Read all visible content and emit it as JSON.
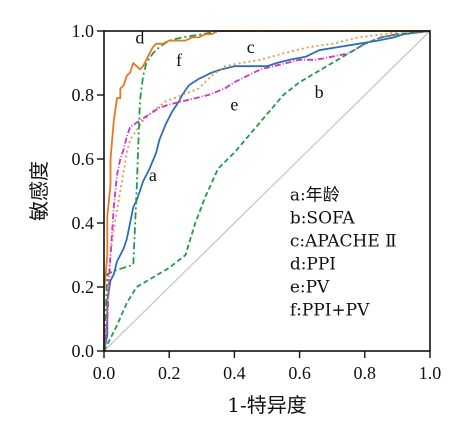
{
  "chart_data": {
    "type": "line",
    "xlabel": "1-特异度",
    "ylabel": "敏感度",
    "xlim": [
      0,
      1
    ],
    "ylim": [
      0,
      1
    ],
    "x_ticks": [
      "0.0",
      "0.2",
      "0.4",
      "0.6",
      "0.8",
      "1.0"
    ],
    "y_ticks": [
      "0.0",
      "0.2",
      "0.4",
      "0.6",
      "0.8",
      "1.0"
    ],
    "grid": false,
    "legend_placement": "lower-right",
    "legend": [
      "a:年龄",
      "b:SOFA",
      "c:APACHE Ⅱ",
      "d:PPI",
      "e:PV",
      "f:PPI+PV"
    ],
    "reference_line": {
      "color": "#c8c8c8",
      "points": [
        [
          0,
          0
        ],
        [
          1,
          1
        ]
      ]
    },
    "series": [
      {
        "name": "a",
        "color": "#2f6db5",
        "dash": "",
        "label_at": [
          0.15,
          0.55
        ],
        "points": [
          [
            0.0,
            0.0
          ],
          [
            0.01,
            0.05
          ],
          [
            0.01,
            0.16
          ],
          [
            0.02,
            0.22
          ],
          [
            0.03,
            0.24
          ],
          [
            0.04,
            0.28
          ],
          [
            0.06,
            0.32
          ],
          [
            0.07,
            0.35
          ],
          [
            0.08,
            0.4
          ],
          [
            0.09,
            0.45
          ],
          [
            0.1,
            0.47
          ],
          [
            0.11,
            0.5
          ],
          [
            0.12,
            0.53
          ],
          [
            0.14,
            0.57
          ],
          [
            0.16,
            0.62
          ],
          [
            0.17,
            0.66
          ],
          [
            0.19,
            0.71
          ],
          [
            0.21,
            0.75
          ],
          [
            0.23,
            0.78
          ],
          [
            0.24,
            0.8
          ],
          [
            0.26,
            0.83
          ],
          [
            0.29,
            0.85
          ],
          [
            0.31,
            0.86
          ],
          [
            0.33,
            0.87
          ],
          [
            0.36,
            0.88
          ],
          [
            0.4,
            0.89
          ],
          [
            0.45,
            0.89
          ],
          [
            0.5,
            0.89
          ],
          [
            0.53,
            0.9
          ],
          [
            0.57,
            0.91
          ],
          [
            0.62,
            0.92
          ],
          [
            0.66,
            0.94
          ],
          [
            0.72,
            0.95
          ],
          [
            0.78,
            0.96
          ],
          [
            0.84,
            0.97
          ],
          [
            0.89,
            0.98
          ],
          [
            0.92,
            0.99
          ],
          [
            1.0,
            1.0
          ]
        ]
      },
      {
        "name": "b",
        "color": "#2f6db5",
        "dash": "",
        "label_at": [
          0.66,
          0.81
        ],
        "points": []
      },
      {
        "name": "c",
        "color": "#e8963c",
        "dash": "2 3",
        "label_at": [
          0.45,
          0.95
        ],
        "points": [
          [
            0.0,
            0.0
          ],
          [
            0.01,
            0.1
          ],
          [
            0.01,
            0.2
          ],
          [
            0.02,
            0.3
          ],
          [
            0.03,
            0.38
          ],
          [
            0.04,
            0.44
          ],
          [
            0.05,
            0.5
          ],
          [
            0.06,
            0.56
          ],
          [
            0.07,
            0.62
          ],
          [
            0.08,
            0.66
          ],
          [
            0.1,
            0.69
          ],
          [
            0.12,
            0.72
          ],
          [
            0.15,
            0.75
          ],
          [
            0.19,
            0.78
          ],
          [
            0.24,
            0.8
          ],
          [
            0.29,
            0.82
          ],
          [
            0.33,
            0.86
          ],
          [
            0.37,
            0.89
          ],
          [
            0.42,
            0.9
          ],
          [
            0.48,
            0.91
          ],
          [
            0.55,
            0.93
          ],
          [
            0.63,
            0.95
          ],
          [
            0.7,
            0.96
          ],
          [
            0.78,
            0.98
          ],
          [
            0.86,
            0.99
          ],
          [
            0.92,
            1.0
          ],
          [
            1.0,
            1.0
          ]
        ]
      },
      {
        "name": "d",
        "color": "#1e9b45",
        "dash": "7 3 2 3",
        "label_at": [
          0.11,
          0.98
        ],
        "points": [
          [
            0.0,
            0.0
          ],
          [
            0.01,
            0.24
          ],
          [
            0.03,
            0.25
          ],
          [
            0.06,
            0.26
          ],
          [
            0.09,
            0.27
          ],
          [
            0.1,
            0.5
          ],
          [
            0.11,
            0.78
          ],
          [
            0.12,
            0.86
          ],
          [
            0.13,
            0.9
          ],
          [
            0.15,
            0.93
          ],
          [
            0.17,
            0.95
          ],
          [
            0.2,
            0.97
          ],
          [
            0.24,
            0.98
          ],
          [
            0.3,
            0.99
          ],
          [
            0.36,
            1.0
          ],
          [
            1.0,
            1.0
          ]
        ]
      },
      {
        "name": "e",
        "color": "#cc33cc",
        "dash": "6 2 1 2",
        "label_at": [
          0.4,
          0.77
        ],
        "points": [
          [
            0.0,
            0.0
          ],
          [
            0.01,
            0.1
          ],
          [
            0.02,
            0.3
          ],
          [
            0.03,
            0.45
          ],
          [
            0.04,
            0.55
          ],
          [
            0.05,
            0.6
          ],
          [
            0.06,
            0.63
          ],
          [
            0.07,
            0.67
          ],
          [
            0.08,
            0.7
          ],
          [
            0.11,
            0.72
          ],
          [
            0.14,
            0.74
          ],
          [
            0.17,
            0.76
          ],
          [
            0.2,
            0.77
          ],
          [
            0.24,
            0.78
          ],
          [
            0.28,
            0.79
          ],
          [
            0.32,
            0.8
          ],
          [
            0.37,
            0.82
          ],
          [
            0.4,
            0.84
          ],
          [
            0.44,
            0.86
          ],
          [
            0.48,
            0.88
          ],
          [
            0.52,
            0.89
          ],
          [
            0.56,
            0.9
          ],
          [
            0.6,
            0.91
          ],
          [
            0.65,
            0.91
          ],
          [
            0.7,
            0.92
          ],
          [
            0.75,
            0.93
          ],
          [
            0.8,
            0.96
          ],
          [
            0.85,
            0.98
          ],
          [
            0.9,
            0.99
          ],
          [
            1.0,
            1.0
          ]
        ]
      },
      {
        "name": "f",
        "color": "#e8781e",
        "dash": "",
        "label_at": [
          0.23,
          0.91
        ],
        "points": [
          [
            0.0,
            0.0
          ],
          [
            0.0,
            0.18
          ],
          [
            0.01,
            0.3
          ],
          [
            0.01,
            0.42
          ],
          [
            0.02,
            0.52
          ],
          [
            0.02,
            0.6
          ],
          [
            0.03,
            0.72
          ],
          [
            0.04,
            0.79
          ],
          [
            0.05,
            0.79
          ],
          [
            0.05,
            0.82
          ],
          [
            0.06,
            0.83
          ],
          [
            0.07,
            0.86
          ],
          [
            0.08,
            0.87
          ],
          [
            0.09,
            0.9
          ],
          [
            0.1,
            0.89
          ],
          [
            0.11,
            0.88
          ],
          [
            0.12,
            0.89
          ],
          [
            0.13,
            0.91
          ],
          [
            0.14,
            0.93
          ],
          [
            0.15,
            0.95
          ],
          [
            0.16,
            0.96
          ],
          [
            0.18,
            0.96
          ],
          [
            0.2,
            0.97
          ],
          [
            0.22,
            0.97
          ],
          [
            0.25,
            0.97
          ],
          [
            0.27,
            0.98
          ],
          [
            0.29,
            0.98
          ],
          [
            0.31,
            0.99
          ],
          [
            0.33,
            0.99
          ],
          [
            0.35,
            1.0
          ],
          [
            1.0,
            1.0
          ]
        ]
      },
      {
        "name": "b-line",
        "color": "#1e9b45",
        "dash": "5 3",
        "label_at": null,
        "points": [
          [
            0.0,
            0.0
          ],
          [
            0.02,
            0.04
          ],
          [
            0.04,
            0.08
          ],
          [
            0.07,
            0.15
          ],
          [
            0.1,
            0.2
          ],
          [
            0.15,
            0.23
          ],
          [
            0.2,
            0.26
          ],
          [
            0.25,
            0.3
          ],
          [
            0.28,
            0.4
          ],
          [
            0.31,
            0.48
          ],
          [
            0.35,
            0.57
          ],
          [
            0.4,
            0.62
          ],
          [
            0.45,
            0.68
          ],
          [
            0.5,
            0.74
          ],
          [
            0.55,
            0.8
          ],
          [
            0.6,
            0.84
          ],
          [
            0.65,
            0.87
          ],
          [
            0.7,
            0.9
          ],
          [
            0.75,
            0.93
          ],
          [
            0.8,
            0.96
          ],
          [
            0.85,
            0.98
          ],
          [
            0.9,
            0.99
          ],
          [
            1.0,
            1.0
          ]
        ]
      }
    ]
  }
}
